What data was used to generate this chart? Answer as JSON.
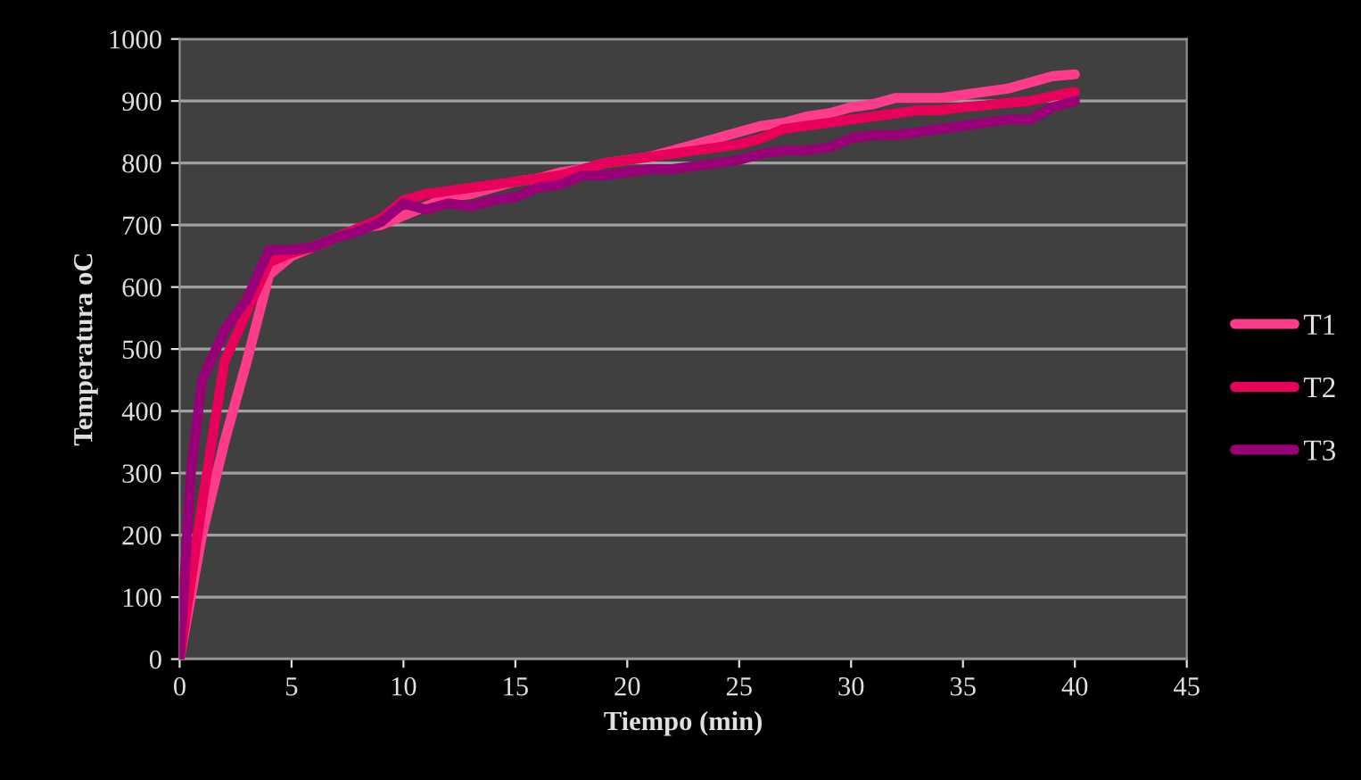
{
  "chart_data": {
    "type": "line",
    "xlabel": "Tiempo (min)",
    "ylabel": "Temperatura oC",
    "xlim": [
      0,
      45
    ],
    "xticks": [
      0,
      5,
      10,
      15,
      20,
      25,
      30,
      35,
      40,
      45
    ],
    "ylim": [
      0,
      1000
    ],
    "yticks": [
      0,
      100,
      200,
      300,
      400,
      500,
      600,
      700,
      800,
      900,
      1000
    ],
    "grid": "y",
    "legend": "right",
    "marker": "none",
    "line_style": "solid",
    "series": [
      {
        "name": "T1",
        "color": "#ff3c8c",
        "x": [
          0,
          1,
          2,
          3,
          4,
          5,
          6,
          7,
          8,
          9,
          10,
          11,
          12,
          13,
          14,
          15,
          16,
          17,
          18,
          19,
          20,
          21,
          22,
          23,
          24,
          25,
          26,
          27,
          28,
          29,
          30,
          31,
          32,
          33,
          34,
          35,
          36,
          37,
          38,
          39,
          40
        ],
        "values": [
          0,
          200,
          350,
          480,
          620,
          650,
          665,
          680,
          695,
          700,
          715,
          730,
          745,
          750,
          760,
          770,
          775,
          785,
          790,
          800,
          805,
          810,
          820,
          830,
          840,
          850,
          860,
          865,
          875,
          880,
          890,
          895,
          905,
          905,
          905,
          910,
          915,
          920,
          930,
          940,
          943
        ]
      },
      {
        "name": "T2",
        "color": "#e8005a",
        "x": [
          0,
          1,
          2,
          3,
          4,
          5,
          6,
          7,
          8,
          9,
          10,
          11,
          12,
          13,
          14,
          15,
          16,
          17,
          18,
          19,
          20,
          21,
          22,
          23,
          24,
          25,
          26,
          27,
          28,
          29,
          30,
          31,
          32,
          33,
          34,
          35,
          36,
          37,
          38,
          39,
          40
        ],
        "values": [
          0,
          250,
          480,
          560,
          640,
          655,
          665,
          680,
          695,
          710,
          740,
          750,
          755,
          760,
          765,
          770,
          775,
          780,
          790,
          800,
          805,
          810,
          815,
          820,
          825,
          830,
          840,
          855,
          860,
          865,
          870,
          875,
          880,
          885,
          885,
          890,
          893,
          897,
          900,
          908,
          915
        ]
      },
      {
        "name": "T3",
        "color": "#990077",
        "x": [
          0,
          0.5,
          1,
          2,
          3,
          4,
          5,
          6,
          7,
          8,
          9,
          10,
          11,
          12,
          13,
          14,
          15,
          16,
          17,
          18,
          19,
          20,
          21,
          22,
          23,
          24,
          25,
          26,
          27,
          28,
          29,
          30,
          31,
          32,
          33,
          34,
          35,
          36,
          37,
          38,
          39,
          40
        ],
        "values": [
          0,
          300,
          450,
          530,
          580,
          660,
          660,
          665,
          680,
          690,
          705,
          735,
          725,
          735,
          730,
          740,
          745,
          760,
          765,
          780,
          780,
          785,
          790,
          790,
          795,
          800,
          805,
          815,
          820,
          820,
          825,
          840,
          845,
          845,
          850,
          855,
          860,
          865,
          870,
          870,
          890,
          900
        ]
      }
    ]
  }
}
